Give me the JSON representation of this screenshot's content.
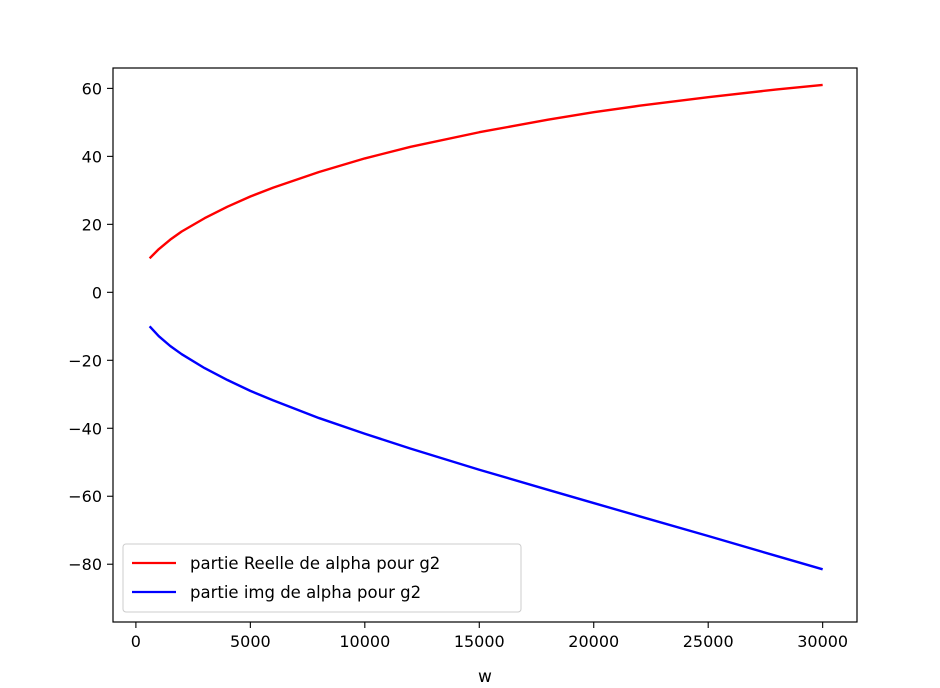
{
  "chart_data": {
    "type": "line",
    "title": "",
    "xlabel": "w",
    "ylabel": "",
    "xlim": [
      -1000,
      31500
    ],
    "ylim": [
      -97,
      66
    ],
    "grid": false,
    "legend_position": "lower-left",
    "x_ticks": [
      0,
      5000,
      10000,
      15000,
      20000,
      25000,
      30000
    ],
    "x_tick_labels": [
      "0",
      "5000",
      "10000",
      "15000",
      "20000",
      "25000",
      "30000"
    ],
    "y_ticks": [
      -80,
      -60,
      -40,
      -20,
      0,
      20,
      40,
      60
    ],
    "y_tick_labels": [
      "−80",
      "−60",
      "−40",
      "−20",
      "0",
      "20",
      "40",
      "60"
    ],
    "series": [
      {
        "name": "partie Reelle de alpha pour g2",
        "color": "#ff0000",
        "x": [
          600,
          1000,
          1500,
          2000,
          3000,
          4000,
          5000,
          6000,
          8000,
          10000,
          12000,
          15000,
          18000,
          20000,
          22000,
          25000,
          28000,
          30000
        ],
        "y": [
          10,
          12.7,
          15.5,
          17.9,
          21.8,
          25.2,
          28.2,
          30.8,
          35.4,
          39.4,
          42.8,
          47.1,
          50.8,
          53,
          54.9,
          57.4,
          59.7,
          61
        ]
      },
      {
        "name": "partie img de alpha pour g2",
        "color": "#0000ff",
        "x": [
          600,
          1000,
          1500,
          2000,
          3000,
          4000,
          5000,
          6000,
          8000,
          10000,
          12000,
          15000,
          18000,
          20000,
          22000,
          25000,
          28000,
          30000
        ],
        "y": [
          -10,
          -12.9,
          -15.8,
          -18.2,
          -22.3,
          -25.8,
          -29,
          -31.8,
          -37,
          -41.6,
          -46,
          -52.2,
          -58.1,
          -62,
          -65.9,
          -71.7,
          -77.6,
          -81.5
        ]
      }
    ]
  }
}
